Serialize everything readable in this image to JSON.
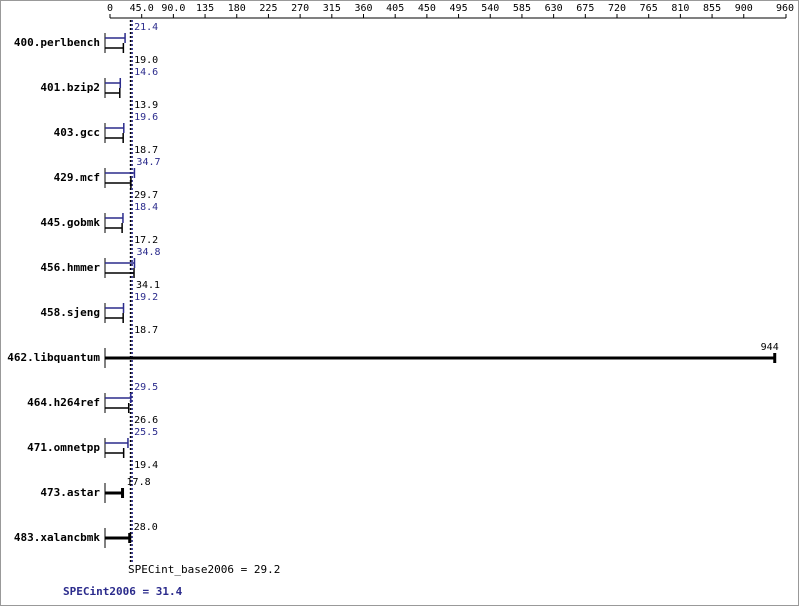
{
  "chart_data": {
    "type": "bar",
    "orientation": "horizontal",
    "categories": [
      "400.perlbench",
      "401.bzip2",
      "403.gcc",
      "429.mcf",
      "445.gobmk",
      "456.hmmer",
      "458.sjeng",
      "462.libquantum",
      "464.h264ref",
      "471.omnetpp",
      "473.astar",
      "483.xalancbmk"
    ],
    "series": [
      {
        "color": "#000000",
        "values": [
          19.0,
          13.9,
          18.7,
          29.7,
          17.2,
          34.1,
          18.7,
          944,
          26.6,
          19.4,
          17.8,
          28.0
        ],
        "value_labels": [
          "19.0",
          "13.9",
          "18.7",
          "29.7",
          "17.2",
          "34.1",
          "18.7",
          "944",
          "26.6",
          "19.4",
          "17.8",
          "28.0"
        ]
      },
      {
        "color": "#2b2b8c",
        "values": [
          21.4,
          14.6,
          19.6,
          34.7,
          18.4,
          34.8,
          19.2,
          null,
          29.5,
          25.5,
          null,
          null
        ],
        "value_labels": [
          "21.4",
          "14.6",
          "19.6",
          "34.7",
          "18.4",
          "34.8",
          "19.2",
          null,
          "29.5",
          "25.5",
          null,
          null
        ]
      }
    ],
    "summary": [
      {
        "label": "SPECint_base2006 = 29.2",
        "value": 29.2,
        "color": "#000000"
      },
      {
        "label": "SPECint2006 = 31.4",
        "value": 31.4,
        "color": "#2b2b8c"
      }
    ],
    "xlim": [
      0,
      960
    ],
    "xticks": [
      0,
      {
        "value": 45,
        "label": "45.0"
      },
      {
        "value": 90,
        "label": "90.0"
      },
      135,
      180,
      225,
      270,
      315,
      360,
      405,
      450,
      495,
      540,
      585,
      630,
      675,
      720,
      765,
      810,
      855,
      900,
      960
    ]
  }
}
